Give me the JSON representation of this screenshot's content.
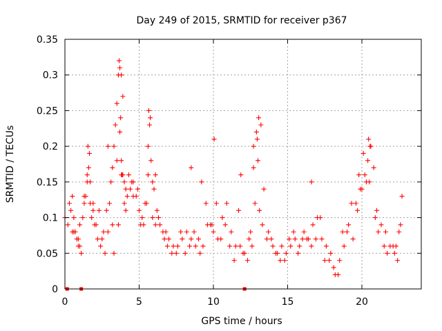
{
  "chart_data": {
    "type": "scatter",
    "title": "Day 249 of 2015, SRMTID for receiver p367",
    "xlabel": "GPS time / hours",
    "ylabel": "SRMTID / TECUs",
    "xlim": [
      0,
      24
    ],
    "ylim": [
      0,
      0.35
    ],
    "grid": true,
    "marker": "+",
    "color": "#ff0000",
    "x_ticks": [
      0,
      5,
      10,
      15,
      20
    ],
    "x_tick_labels": [
      "0",
      "5",
      "10",
      "15",
      "20"
    ],
    "y_ticks": [
      0,
      0.05,
      0.1,
      0.15,
      0.2,
      0.25,
      0.3,
      0.35
    ],
    "y_tick_labels": [
      "0",
      "0.05",
      "0.1",
      "0.15",
      "0.2",
      "0.25",
      "0.3",
      "0.35"
    ],
    "zero_points_x": [
      0.15,
      1.1,
      12.1
    ],
    "series": [
      {
        "name": "SRMTID",
        "x": [
          0.0,
          0.2,
          0.4,
          0.5,
          0.6,
          0.7,
          0.8,
          0.9,
          1.0,
          1.1,
          1.2,
          1.3,
          1.4,
          1.5,
          1.6,
          1.7,
          1.8,
          1.9,
          2.0,
          2.2,
          2.4,
          2.6,
          2.8,
          3.0,
          3.1,
          3.2,
          3.3,
          3.4,
          3.5,
          3.6,
          3.7,
          3.8,
          3.9,
          4.0,
          4.1,
          4.2,
          4.4,
          4.6,
          4.8,
          5.0,
          5.2,
          5.4,
          5.6,
          5.7,
          5.8,
          6.0,
          6.2,
          6.4,
          6.6,
          6.8,
          7.0,
          7.3,
          7.6,
          7.9,
          8.2,
          8.5,
          8.8,
          9.0,
          9.2,
          9.5,
          9.8,
          10.0,
          10.3,
          10.6,
          10.9,
          11.2,
          11.5,
          11.8,
          12.0,
          12.3,
          12.6,
          12.8,
          13.0,
          13.2,
          13.4,
          13.7,
          14.0,
          14.3,
          14.6,
          14.9,
          15.2,
          15.5,
          15.8,
          16.1,
          16.4,
          16.7,
          17.0,
          17.3,
          17.6,
          17.9,
          18.2,
          18.5,
          18.8,
          19.1,
          19.4,
          19.7,
          20.0,
          20.2,
          20.4,
          20.6,
          20.8,
          21.0,
          21.3,
          21.6,
          21.9,
          22.2,
          22.5,
          22.7,
          0.3,
          0.5,
          0.9,
          1.3,
          1.7,
          2.1,
          2.5,
          2.9,
          3.3,
          3.6,
          3.75,
          3.85,
          4.0,
          4.3,
          4.6,
          5.1,
          5.5,
          5.9,
          6.3,
          6.9,
          7.5,
          8.1,
          8.7,
          9.3,
          9.9,
          10.5,
          11.1,
          11.7,
          12.4,
          12.7,
          12.9,
          13.1,
          13.6,
          14.2,
          14.8,
          15.4,
          16.0,
          16.6,
          17.2,
          17.8,
          18.4,
          19.0,
          19.6,
          20.1,
          20.5,
          21.1,
          21.7,
          22.3,
          22.6,
          0.6,
          1.0,
          1.5,
          1.9,
          2.3,
          2.7,
          3.2,
          3.5,
          3.8,
          4.1,
          4.5,
          4.9,
          5.3,
          5.6,
          6.1,
          6.7,
          7.2,
          7.8,
          8.4,
          9.1,
          9.6,
          10.2,
          10.8,
          11.4,
          12.1,
          12.5,
          13.3,
          13.9,
          14.5,
          15.1,
          15.7,
          16.3,
          16.9,
          17.5,
          18.1,
          18.7,
          19.3,
          19.9,
          20.3,
          20.9,
          21.5,
          22.1,
          22.4,
          3.65,
          3.7,
          3.8,
          3.9,
          5.65,
          5.75,
          10.05,
          12.95,
          13.05,
          20.45,
          20.55,
          1.55,
          1.65,
          2.9,
          5.9,
          6.1,
          8.5,
          11.85,
          12.7,
          16.6,
          19.8
        ],
        "y": [
          0.1,
          0.09,
          0.11,
          0.13,
          0.1,
          0.08,
          0.07,
          0.07,
          0.06,
          0.05,
          0.1,
          0.12,
          0.13,
          0.15,
          0.17,
          0.12,
          0.1,
          0.11,
          0.09,
          0.07,
          0.06,
          0.08,
          0.11,
          0.12,
          0.15,
          0.17,
          0.2,
          0.23,
          0.26,
          0.3,
          0.22,
          0.18,
          0.16,
          0.15,
          0.14,
          0.13,
          0.14,
          0.15,
          0.13,
          0.11,
          0.1,
          0.12,
          0.2,
          0.23,
          0.18,
          0.14,
          0.11,
          0.09,
          0.08,
          0.08,
          0.07,
          0.06,
          0.06,
          0.07,
          0.08,
          0.07,
          0.06,
          0.07,
          0.15,
          0.12,
          0.09,
          0.08,
          0.07,
          0.1,
          0.12,
          0.08,
          0.06,
          0.06,
          0.05,
          0.04,
          0.06,
          0.12,
          0.18,
          0.23,
          0.14,
          0.08,
          0.06,
          0.05,
          0.06,
          0.05,
          0.06,
          0.07,
          0.06,
          0.08,
          0.07,
          0.09,
          0.1,
          0.07,
          0.06,
          0.05,
          0.02,
          0.04,
          0.06,
          0.09,
          0.07,
          0.11,
          0.14,
          0.16,
          0.18,
          0.2,
          0.17,
          0.11,
          0.09,
          0.08,
          0.06,
          0.05,
          0.08,
          0.13,
          0.12,
          0.08,
          0.06,
          0.13,
          0.15,
          0.09,
          0.07,
          0.08,
          0.05,
          0.09,
          0.24,
          0.16,
          0.12,
          0.16,
          0.13,
          0.09,
          0.12,
          0.1,
          0.1,
          0.06,
          0.05,
          0.05,
          0.08,
          0.06,
          0.09,
          0.07,
          0.06,
          0.11,
          0.07,
          0.2,
          0.22,
          0.11,
          0.07,
          0.05,
          0.04,
          0.08,
          0.07,
          0.06,
          0.1,
          0.04,
          0.02,
          0.08,
          0.12,
          0.19,
          0.15,
          0.08,
          0.05,
          0.06,
          0.09,
          0.08,
          0.09,
          0.16,
          0.12,
          0.11,
          0.05,
          0.09,
          0.18,
          0.16,
          0.11,
          0.15,
          0.14,
          0.09,
          0.16,
          0.09,
          0.07,
          0.05,
          0.08,
          0.06,
          0.05,
          0.09,
          0.12,
          0.09,
          0.04,
          0.05,
          0.08,
          0.09,
          0.07,
          0.04,
          0.07,
          0.05,
          0.07,
          0.07,
          0.04,
          0.03,
          0.08,
          0.12,
          0.14,
          0.15,
          0.1,
          0.06,
          0.06,
          0.04,
          0.32,
          0.31,
          0.3,
          0.27,
          0.25,
          0.24,
          0.21,
          0.21,
          0.24,
          0.21,
          0.2,
          0.2,
          0.19,
          0.2,
          0.15,
          0.16,
          0.17,
          0.16,
          0.17,
          0.15,
          0.16
        ]
      }
    ]
  }
}
